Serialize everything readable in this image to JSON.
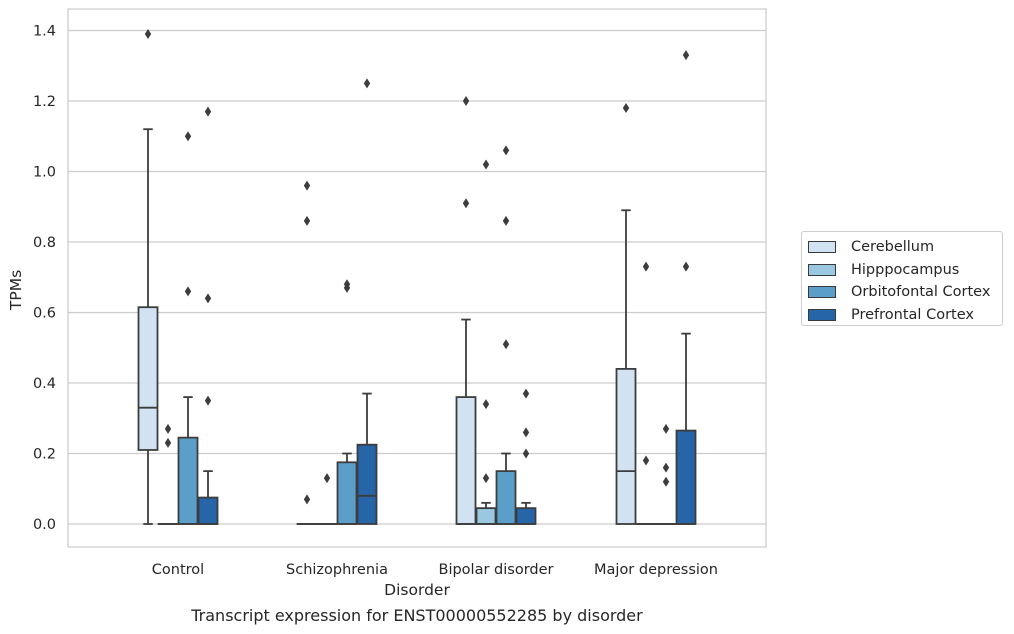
{
  "chart_data": {
    "type": "box",
    "title": "",
    "xlabel": "Disorder",
    "ylabel": "TPMs",
    "ylim": [
      -0.067,
      1.46
    ],
    "yticks": [
      "0.0",
      "0.2",
      "0.4",
      "0.6",
      "0.8",
      "1.0",
      "1.2",
      "1.4"
    ],
    "grid": "horizontal",
    "legend_position": "right",
    "categories": [
      "Control",
      "Schizophrenia",
      "Bipolar disorder",
      "Major depression"
    ],
    "series": [
      {
        "name": "Cerebellum",
        "color": "#d1e2f2",
        "boxes": [
          {
            "whislo": 0.0,
            "q1": 0.21,
            "med": 0.33,
            "q3": 0.615,
            "whishi": 1.12,
            "fliers": [
              1.39
            ]
          },
          {
            "whislo": 0.0,
            "q1": 0.0,
            "med": 0.0,
            "q3": 0.0,
            "whishi": 0.0,
            "fliers": [
              0.07,
              0.86,
              0.96
            ]
          },
          {
            "whislo": 0.0,
            "q1": 0.0,
            "med": 0.0,
            "q3": 0.36,
            "whishi": 0.58,
            "fliers": [
              0.91,
              1.2
            ]
          },
          {
            "whislo": 0.0,
            "q1": 0.0,
            "med": 0.15,
            "q3": 0.44,
            "whishi": 0.89,
            "fliers": [
              1.18
            ]
          }
        ]
      },
      {
        "name": "Hipppocampus",
        "color": "#9ac8e0",
        "boxes": [
          {
            "whislo": 0.0,
            "q1": 0.0,
            "med": 0.0,
            "q3": 0.0,
            "whishi": 0.0,
            "fliers": [
              0.23,
              0.27
            ]
          },
          {
            "whislo": 0.0,
            "q1": 0.0,
            "med": 0.0,
            "q3": 0.0,
            "whishi": 0.0,
            "fliers": [
              0.13
            ]
          },
          {
            "whislo": 0.0,
            "q1": 0.0,
            "med": 0.0,
            "q3": 0.045,
            "whishi": 0.06,
            "fliers": [
              0.13,
              0.34,
              1.02
            ]
          },
          {
            "whislo": 0.0,
            "q1": 0.0,
            "med": 0.0,
            "q3": 0.0,
            "whishi": 0.0,
            "fliers": [
              0.18,
              0.73
            ]
          }
        ]
      },
      {
        "name": "Orbitofontal Cortex",
        "color": "#5a9ec9",
        "boxes": [
          {
            "whislo": 0.0,
            "q1": 0.0,
            "med": 0.0,
            "q3": 0.245,
            "whishi": 0.36,
            "fliers": [
              0.66,
              1.1
            ]
          },
          {
            "whislo": 0.0,
            "q1": 0.0,
            "med": 0.0,
            "q3": 0.175,
            "whishi": 0.2,
            "fliers": [
              0.67,
              0.68
            ]
          },
          {
            "whislo": 0.0,
            "q1": 0.0,
            "med": 0.0,
            "q3": 0.15,
            "whishi": 0.2,
            "fliers": [
              0.51,
              0.86,
              1.06
            ]
          },
          {
            "whislo": 0.0,
            "q1": 0.0,
            "med": 0.0,
            "q3": 0.0,
            "whishi": 0.0,
            "fliers": [
              0.12,
              0.16,
              0.27
            ]
          }
        ]
      },
      {
        "name": "Prefrontal Cortex",
        "color": "#2565a8",
        "boxes": [
          {
            "whislo": 0.0,
            "q1": 0.0,
            "med": 0.0,
            "q3": 0.075,
            "whishi": 0.15,
            "fliers": [
              0.35,
              0.64,
              1.17
            ]
          },
          {
            "whislo": 0.0,
            "q1": 0.0,
            "med": 0.08,
            "q3": 0.225,
            "whishi": 0.37,
            "fliers": [
              1.25
            ]
          },
          {
            "whislo": 0.0,
            "q1": 0.0,
            "med": 0.0,
            "q3": 0.045,
            "whishi": 0.06,
            "fliers": [
              0.2,
              0.26,
              0.37
            ]
          },
          {
            "whislo": 0.0,
            "q1": 0.0,
            "med": 0.0,
            "q3": 0.265,
            "whishi": 0.54,
            "fliers": [
              0.73,
              1.33
            ]
          }
        ]
      }
    ]
  },
  "caption": "Transcript expression for ENST00000552285 by disorder"
}
